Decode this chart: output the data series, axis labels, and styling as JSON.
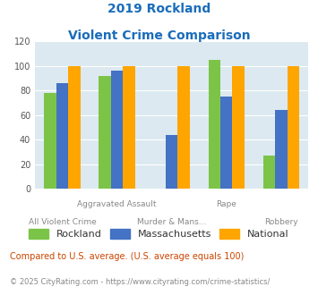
{
  "title_line1": "2019 Rockland",
  "title_line2": "Violent Crime Comparison",
  "categories": [
    "All Violent Crime",
    "Aggravated Assault",
    "Murder & Mans...",
    "Rape",
    "Robbery"
  ],
  "series": {
    "Rockland": [
      78,
      92,
      0,
      105,
      27
    ],
    "Massachusetts": [
      86,
      96,
      44,
      75,
      64
    ],
    "National": [
      100,
      100,
      100,
      100,
      100
    ]
  },
  "colors": {
    "Rockland": "#7cc448",
    "Massachusetts": "#4472c4",
    "National": "#ffa500"
  },
  "ylim": [
    0,
    120
  ],
  "yticks": [
    0,
    20,
    40,
    60,
    80,
    100,
    120
  ],
  "bar_width": 0.22,
  "plot_bg": "#dce9f0",
  "fig_bg": "#ffffff",
  "title_color": "#1a6cba",
  "footnote1": "Compared to U.S. average. (U.S. average equals 100)",
  "footnote2": "© 2025 CityRating.com - https://www.cityrating.com/crime-statistics/",
  "footnote1_color": "#cc4400",
  "footnote2_color": "#888888",
  "upper_labels": {
    "1": "Aggravated Assault",
    "3": "Rape"
  },
  "lower_labels": {
    "0": "All Violent Crime",
    "2": "Murder & Mans...",
    "4": "Robbery"
  }
}
